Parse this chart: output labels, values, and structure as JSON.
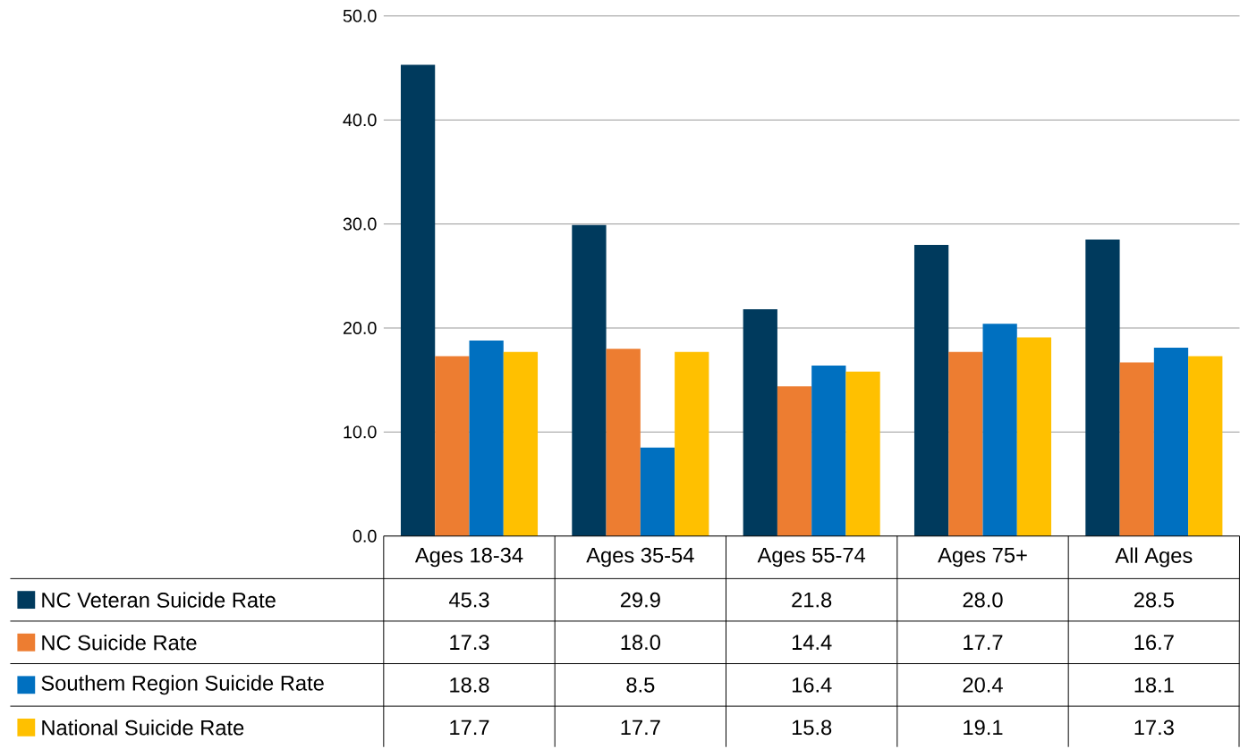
{
  "chart_data": {
    "type": "bar",
    "categories": [
      "Ages 18-34",
      "Ages 35-54",
      "Ages 55-74",
      "Ages 75+",
      "All Ages"
    ],
    "series": [
      {
        "name": "NC Veteran Suicide Rate",
        "color": "#003a5d",
        "values": [
          45.3,
          29.9,
          21.8,
          28.0,
          28.5
        ],
        "value_labels": [
          "45.3",
          "29.9",
          "21.8",
          "28.0",
          "28.5"
        ]
      },
      {
        "name": "NC Suicide Rate",
        "color": "#ed7d31",
        "values": [
          17.3,
          18.0,
          14.4,
          17.7,
          16.7
        ],
        "value_labels": [
          "17.3",
          "18.0",
          "14.4",
          "17.7",
          "16.7"
        ]
      },
      {
        "name": "Southem Region Suicide Rate",
        "color": "#0070c0",
        "values": [
          18.8,
          8.5,
          16.4,
          20.4,
          18.1
        ],
        "value_labels": [
          "18.8",
          "8.5",
          "16.4",
          "20.4",
          "18.1"
        ]
      },
      {
        "name": "National Suicide Rate",
        "color": "#ffc000",
        "values": [
          17.7,
          17.7,
          15.8,
          19.1,
          17.3
        ],
        "value_labels": [
          "17.7",
          "17.7",
          "15.8",
          "19.1",
          "17.3"
        ]
      }
    ],
    "ylim": [
      0,
      50
    ],
    "yticks": [
      {
        "value": 0,
        "label": "0.0"
      },
      {
        "value": 10,
        "label": "10.0"
      },
      {
        "value": 20,
        "label": "20.0"
      },
      {
        "value": 30,
        "label": "30.0"
      },
      {
        "value": 40,
        "label": "40.0"
      },
      {
        "value": 50,
        "label": "50.0"
      }
    ],
    "grid": "y",
    "legend": "bottom"
  }
}
